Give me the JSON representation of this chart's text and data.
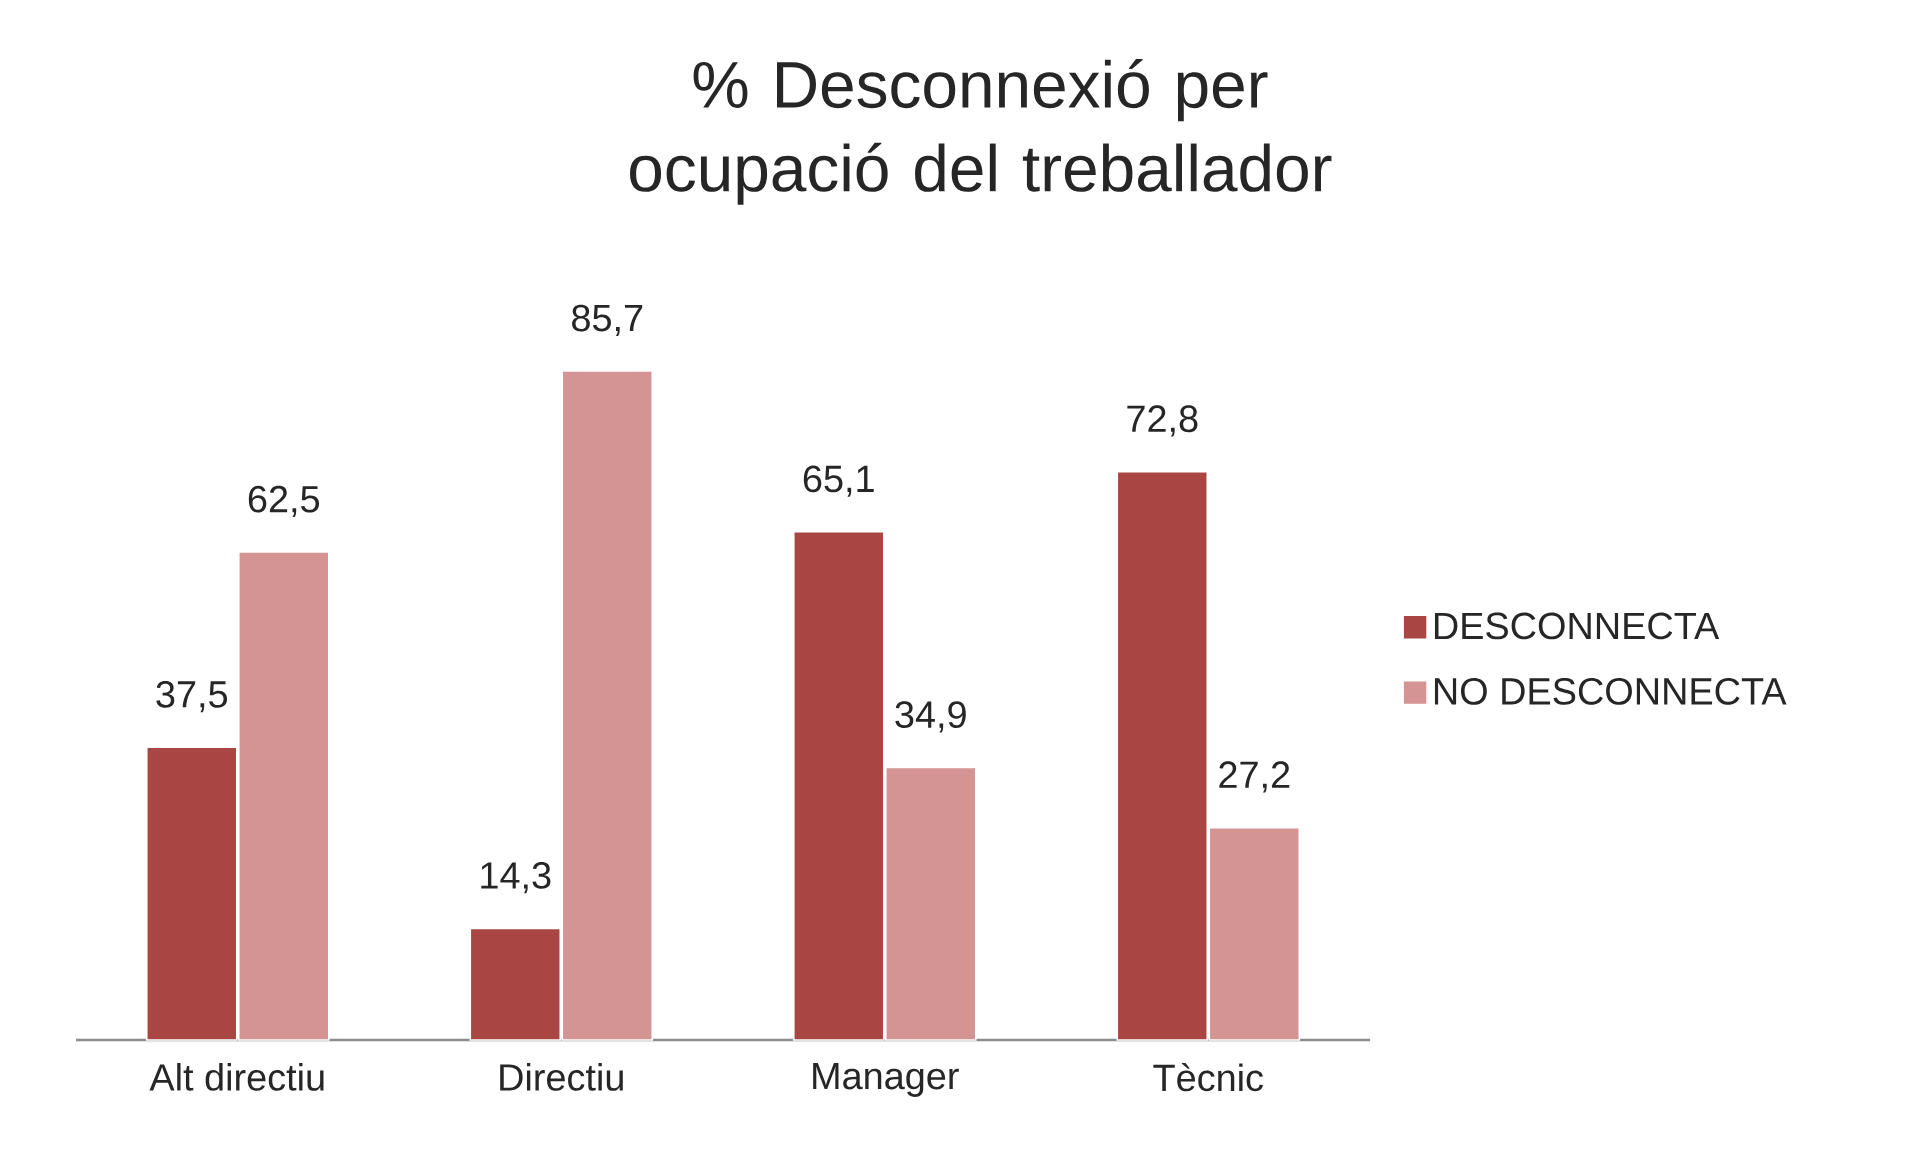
{
  "chart_data": {
    "type": "bar",
    "title": "% Desconnexió per ocupació del treballador",
    "categories": [
      "Alt directiu",
      "Directiu",
      "Manager",
      "Tècnic"
    ],
    "series": [
      {
        "name": "DESCONNECTA",
        "color": "#a94543",
        "values": [
          37.5,
          14.3,
          65.1,
          72.8
        ],
        "value_labels": [
          "37,5",
          "14,3",
          "65,1",
          "72,8"
        ]
      },
      {
        "name": "NO DESCONNECTA",
        "color": "#d39493",
        "values": [
          62.5,
          85.7,
          34.9,
          27.2
        ],
        "value_labels": [
          "62,5",
          "85,7",
          "34,9",
          "27,2"
        ]
      }
    ],
    "legend": "right"
  }
}
